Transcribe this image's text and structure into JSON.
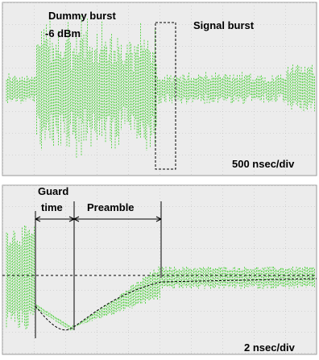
{
  "panels": [
    {
      "labels": {
        "dummy": "Dummy burst",
        "level": "-6 dBm",
        "signal": "Signal burst"
      },
      "timebase": "500 nsec/div"
    },
    {
      "labels": {
        "guard1": "Guard",
        "guard2": "time",
        "preamble": "Preamble"
      },
      "timebase": "2 nsec/div"
    }
  ]
}
